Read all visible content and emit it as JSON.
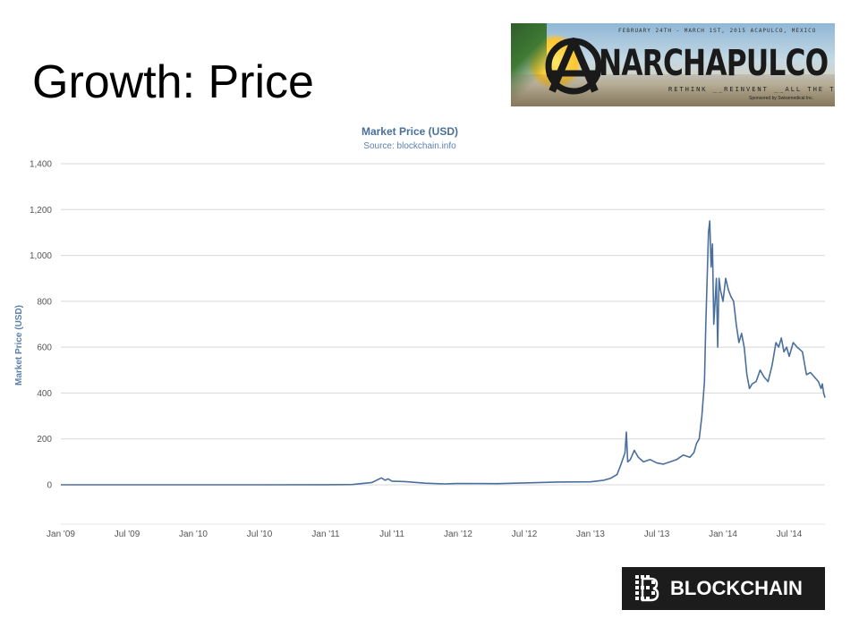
{
  "slide": {
    "title": "Growth: Price"
  },
  "banner": {
    "dates": "FEBRUARY 24TH - MARCH 1ST, 2015 ACAPULCO, MEXICO",
    "brand": "NARCHAPULCO",
    "tagline": "RETHINK __REINVENT __ALL THE THINGS",
    "sponsor": "Sponsored by Swissmedical Inc."
  },
  "logo": {
    "wordmark": "BLOCKCHAIN",
    "icon": "blockchain-b-icon"
  },
  "chart_data": {
    "type": "line",
    "title": "Market Price (USD)",
    "subtitle": "Source: blockchain.info",
    "xlabel": "",
    "ylabel": "Market Price (USD)",
    "ylim": [
      0,
      1400
    ],
    "yticks": [
      0,
      200,
      400,
      600,
      800,
      1000,
      1200,
      1400
    ],
    "ytick_labels": [
      "0",
      "200",
      "400",
      "600",
      "800",
      "1,000",
      "1,200",
      "1,400"
    ],
    "xlim": [
      2009.0,
      2014.77
    ],
    "xticks": [
      2009.0,
      2009.5,
      2010.0,
      2010.5,
      2011.0,
      2011.5,
      2012.0,
      2012.5,
      2013.0,
      2013.5,
      2014.0,
      2014.5
    ],
    "xtick_labels": [
      "Jan '09",
      "Jul '09",
      "Jan '10",
      "Jul '10",
      "Jan '11",
      "Jul '11",
      "Jan '12",
      "Jul '12",
      "Jan '13",
      "Jul '13",
      "Jan '14",
      "Jul '14"
    ],
    "grid": true,
    "line_color": "#4a6f9c",
    "axis_label_color": "#5b7fad",
    "series": [
      {
        "x": [
          2009.0,
          2010.0,
          2010.5,
          2011.0,
          2011.2,
          2011.35,
          2011.42,
          2011.45,
          2011.47,
          2011.5,
          2011.6,
          2011.75,
          2011.9,
          2012.0,
          2012.3,
          2012.5,
          2012.75,
          2013.0,
          2013.1,
          2013.15,
          2013.2,
          2013.23,
          2013.26,
          2013.27,
          2013.28,
          2013.3,
          2013.33,
          2013.36,
          2013.4,
          2013.45,
          2013.5,
          2013.55,
          2013.6,
          2013.65,
          2013.7,
          2013.75,
          2013.78,
          2013.8,
          2013.82,
          2013.84,
          2013.86,
          2013.87,
          2013.88,
          2013.89,
          2013.9,
          2013.91,
          2013.92,
          2013.93,
          2013.94,
          2013.95,
          2013.96,
          2013.97,
          2013.98,
          2014.0,
          2014.02,
          2014.04,
          2014.06,
          2014.08,
          2014.1,
          2014.12,
          2014.14,
          2014.16,
          2014.18,
          2014.2,
          2014.22,
          2014.25,
          2014.28,
          2014.31,
          2014.34,
          2014.37,
          2014.4,
          2014.42,
          2014.44,
          2014.46,
          2014.48,
          2014.5,
          2014.53,
          2014.56,
          2014.6,
          2014.63,
          2014.66,
          2014.69,
          2014.72,
          2014.74,
          2014.75,
          2014.76,
          2014.77
        ],
        "y": [
          0,
          0.1,
          0.07,
          0.3,
          1,
          10,
          30,
          20,
          26,
          16,
          14,
          7,
          4,
          6,
          5,
          8,
          12,
          13,
          20,
          28,
          45,
          90,
          140,
          230,
          100,
          110,
          150,
          120,
          100,
          110,
          95,
          90,
          100,
          110,
          130,
          120,
          140,
          180,
          200,
          300,
          450,
          700,
          900,
          1100,
          1150,
          950,
          1050,
          700,
          800,
          900,
          600,
          900,
          850,
          800,
          900,
          850,
          820,
          800,
          700,
          620,
          660,
          600,
          480,
          420,
          440,
          450,
          500,
          470,
          450,
          520,
          620,
          600,
          640,
          580,
          600,
          560,
          620,
          600,
          580,
          480,
          490,
          470,
          450,
          420,
          440,
          400,
          380
        ]
      }
    ]
  }
}
